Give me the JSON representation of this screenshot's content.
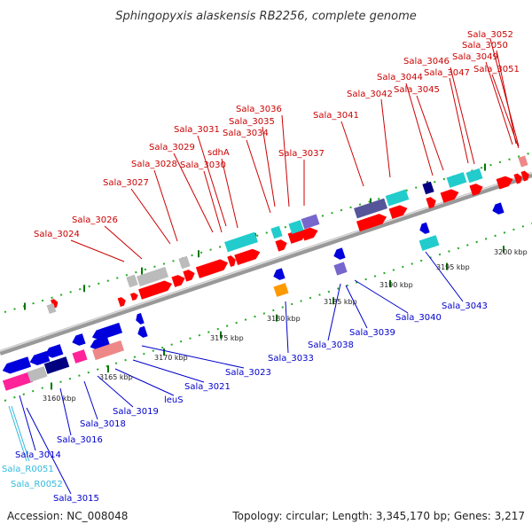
{
  "title": "Sphingopyxis alaskensis RB2256, complete genome",
  "footer": {
    "accession": "Accession: NC_008048",
    "summary": "Topology: circular; Length: 3,345,170 bp; Genes: 3,217"
  },
  "scale_labels": [
    "3160 kbp",
    "3165 kbp",
    "3170 kbp",
    "3175 kbp",
    "3180 kbp",
    "3185 kbp",
    "3190 kbp",
    "3195 kbp",
    "3200 kbp"
  ],
  "colors": {
    "forward_label": "#cc0000",
    "reverse_label": "#0000cc",
    "rna_label": "#33bbdd",
    "red_gene": "#ff0000",
    "blue_gene": "#0000dd",
    "cyan_gene": "#22cccc",
    "navy_gene": "#000080",
    "slate_gene": "#555599",
    "magenta_gene": "#ff2299",
    "salmon_gene": "#ee8888",
    "gray_gene": "#bbbbbb",
    "orange_gene": "#ff9900",
    "purple_gene": "#7766cc",
    "backbone": "#999999",
    "tick_green": "#007700"
  },
  "top_labels": [
    "Sala_3052",
    "Sala_3050",
    "Sala_3049",
    "Sala_3051",
    "Sala_3046",
    "Sala_3047",
    "Sala_3044",
    "Sala_3045",
    "Sala_3042",
    "Sala_3041",
    "Sala_3036",
    "Sala_3035",
    "Sala_3034",
    "Sala_3031",
    "sdhA",
    "Sala_3029",
    "Sala_3030",
    "Sala_3028",
    "Sala_3037",
    "Sala_3027",
    "Sala_3026",
    "Sala_3024"
  ],
  "bottom_labels": [
    "Sala_3043",
    "Sala_3040",
    "Sala_3039",
    "Sala_3038",
    "Sala_3033",
    "Sala_3023",
    "Sala_3021",
    "leuS",
    "Sala_3019",
    "Sala_3018",
    "Sala_3016",
    "Sala_3014",
    "Sala_3015"
  ],
  "rna_labels": [
    "Sala_R0051",
    "Sala_R0052"
  ]
}
